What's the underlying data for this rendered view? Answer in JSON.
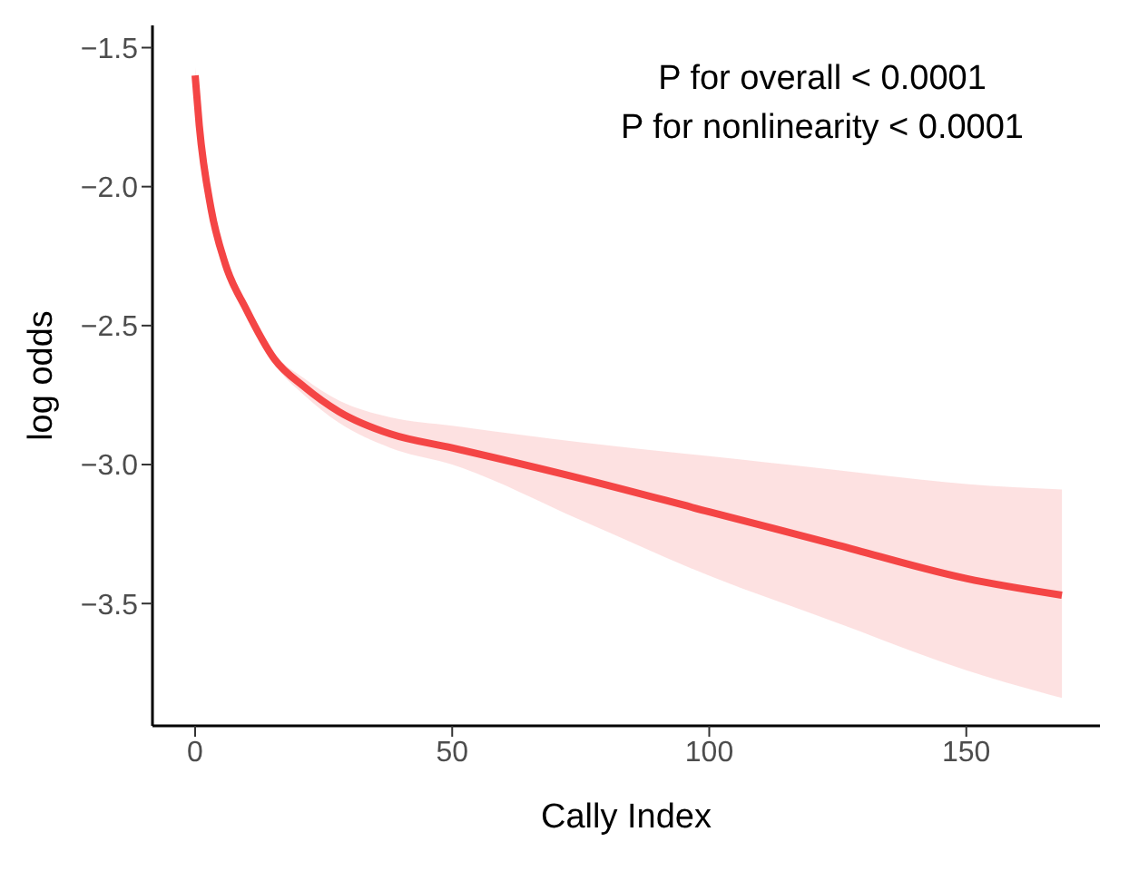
{
  "chart_data": {
    "type": "line",
    "xlabel": "Cally Index",
    "ylabel": "log odds",
    "annotations": [
      "P for overall < 0.0001",
      "P for nonlinearity < 0.0001"
    ],
    "xlim": [
      -8.3,
      176
    ],
    "xticks": [
      0,
      50,
      100,
      150
    ],
    "ylim": [
      -3.94,
      -1.42
    ],
    "yticks": [
      {
        "value": -1.5,
        "label": "−1.5"
      },
      {
        "value": -2,
        "label": "−2.0"
      },
      {
        "value": -2.5,
        "label": "−2.5"
      },
      {
        "value": -3,
        "label": "−3.0"
      },
      {
        "value": -3.5,
        "label": "−3.5"
      }
    ],
    "grid": false,
    "legend": false,
    "marker": "none",
    "line_style": "solid",
    "series": [
      {
        "color": "#f44545",
        "x": [
          0,
          0.8,
          3.1,
          5.9,
          9.9,
          15.4,
          21.2,
          28,
          38,
          50,
          75,
          100,
          125,
          150,
          168.6
        ],
        "values": [
          -1.6,
          -1.78,
          -2.08,
          -2.28,
          -2.44,
          -2.62,
          -2.72,
          -2.81,
          -2.89,
          -2.94,
          -3.05,
          -3.17,
          -3.29,
          -3.41,
          -3.47
        ],
        "upper": [
          -1.57,
          -1.76,
          -2.06,
          -2.26,
          -2.42,
          -2.6,
          -2.69,
          -2.77,
          -2.83,
          -2.86,
          -2.92,
          -2.97,
          -3.02,
          -3.07,
          -3.09
        ],
        "lower": [
          -1.63,
          -1.8,
          -2.1,
          -2.3,
          -2.46,
          -2.64,
          -2.75,
          -2.85,
          -2.94,
          -3.0,
          -3.2,
          -3.4,
          -3.57,
          -3.74,
          -3.84
        ]
      }
    ]
  }
}
